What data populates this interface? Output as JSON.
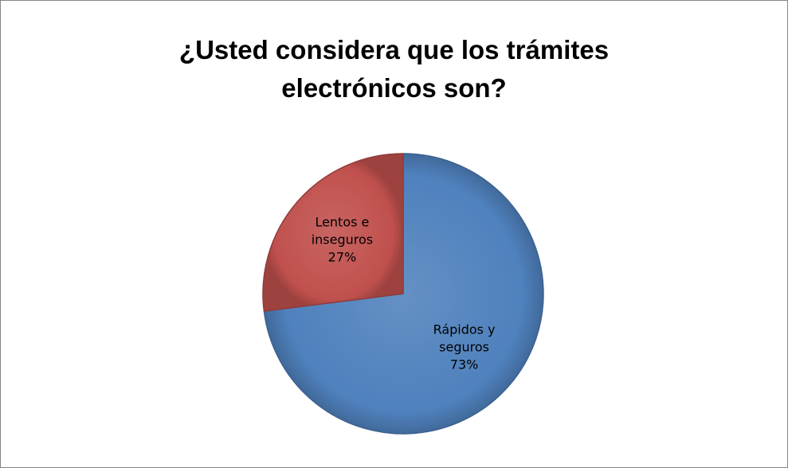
{
  "chart_data": {
    "type": "pie",
    "title_lines": [
      "¿Usted considera que los trámites",
      "electrónicos son?"
    ],
    "slices": [
      {
        "name_lines": [
          "Rápidos y",
          "seguros"
        ],
        "value": 73,
        "value_label": "73%",
        "color": "#4F81BD"
      },
      {
        "name_lines": [
          "Lentos e",
          "inseguros"
        ],
        "value": 27,
        "value_label": "27%",
        "color": "#C0504D"
      }
    ],
    "start_angle_deg": 0,
    "direction": "clockwise",
    "legend": "none"
  }
}
